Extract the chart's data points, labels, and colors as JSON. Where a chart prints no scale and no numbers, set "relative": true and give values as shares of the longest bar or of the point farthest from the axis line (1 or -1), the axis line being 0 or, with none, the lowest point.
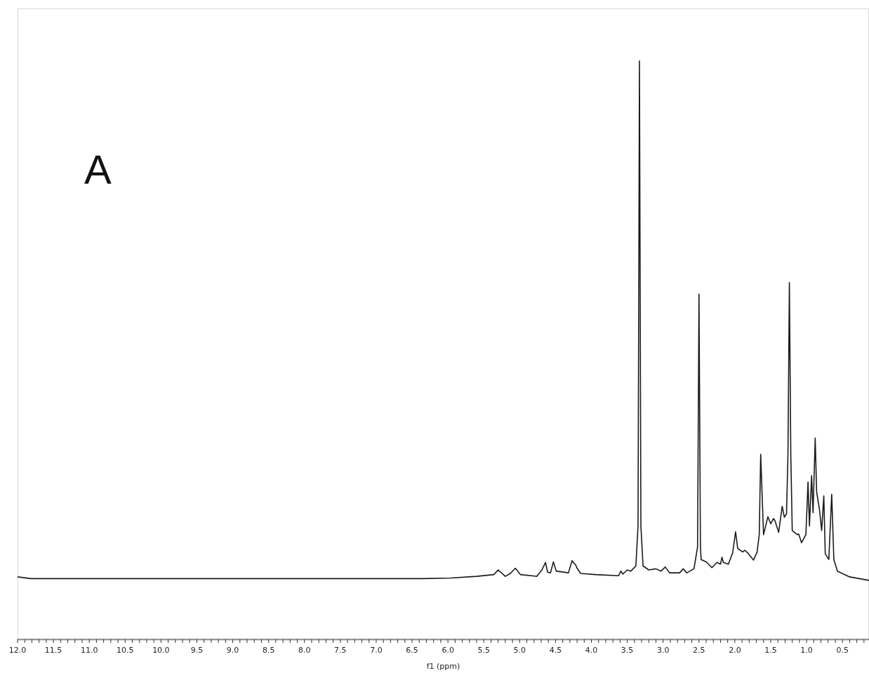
{
  "chart_data": {
    "type": "line",
    "relative": true,
    "xlabel": "f1 (ppm)",
    "annotations": [
      "A"
    ],
    "marker": "none",
    "tick_labels": "x",
    "xlim": [
      12.0,
      0.13
    ],
    "xticks": [
      {
        "value": 12,
        "label": "12.0"
      },
      {
        "value": 11.9,
        "label": null
      },
      {
        "value": 11.8,
        "label": null
      },
      {
        "value": 11.7,
        "label": null
      },
      {
        "value": 11.6,
        "label": null
      },
      {
        "value": 11.5,
        "label": "11.5"
      },
      {
        "value": 11.4,
        "label": null
      },
      {
        "value": 11.3,
        "label": null
      },
      {
        "value": 11.2,
        "label": null
      },
      {
        "value": 11.1,
        "label": null
      },
      {
        "value": 11,
        "label": "11.0"
      },
      {
        "value": 10.9,
        "label": null
      },
      {
        "value": 10.8,
        "label": null
      },
      {
        "value": 10.7,
        "label": null
      },
      {
        "value": 10.6,
        "label": null
      },
      {
        "value": 10.5,
        "label": "10.5"
      },
      {
        "value": 10.4,
        "label": null
      },
      {
        "value": 10.3,
        "label": null
      },
      {
        "value": 10.2,
        "label": null
      },
      {
        "value": 10.1,
        "label": null
      },
      {
        "value": 10,
        "label": "10.0"
      },
      {
        "value": 9.9,
        "label": null
      },
      {
        "value": 9.8,
        "label": null
      },
      {
        "value": 9.7,
        "label": null
      },
      {
        "value": 9.6,
        "label": null
      },
      {
        "value": 9.5,
        "label": "9.5"
      },
      {
        "value": 9.4,
        "label": null
      },
      {
        "value": 9.3,
        "label": null
      },
      {
        "value": 9.2,
        "label": null
      },
      {
        "value": 9.1,
        "label": null
      },
      {
        "value": 9,
        "label": "9.0"
      },
      {
        "value": 8.9,
        "label": null
      },
      {
        "value": 8.8,
        "label": null
      },
      {
        "value": 8.7,
        "label": null
      },
      {
        "value": 8.6,
        "label": null
      },
      {
        "value": 8.5,
        "label": "8.5"
      },
      {
        "value": 8.4,
        "label": null
      },
      {
        "value": 8.3,
        "label": null
      },
      {
        "value": 8.2,
        "label": null
      },
      {
        "value": 8.1,
        "label": null
      },
      {
        "value": 8,
        "label": "8.0"
      },
      {
        "value": 7.9,
        "label": null
      },
      {
        "value": 7.8,
        "label": null
      },
      {
        "value": 7.7,
        "label": null
      },
      {
        "value": 7.6,
        "label": null
      },
      {
        "value": 7.5,
        "label": "7.5"
      },
      {
        "value": 7.4,
        "label": null
      },
      {
        "value": 7.3,
        "label": null
      },
      {
        "value": 7.2,
        "label": null
      },
      {
        "value": 7.1,
        "label": null
      },
      {
        "value": 7,
        "label": "7.0"
      },
      {
        "value": 6.9,
        "label": null
      },
      {
        "value": 6.8,
        "label": null
      },
      {
        "value": 6.7,
        "label": null
      },
      {
        "value": 6.6,
        "label": null
      },
      {
        "value": 6.5,
        "label": "6.5"
      },
      {
        "value": 6.4,
        "label": null
      },
      {
        "value": 6.3,
        "label": null
      },
      {
        "value": 6.2,
        "label": null
      },
      {
        "value": 6.1,
        "label": null
      },
      {
        "value": 6,
        "label": "6.0"
      },
      {
        "value": 5.9,
        "label": null
      },
      {
        "value": 5.8,
        "label": null
      },
      {
        "value": 5.7,
        "label": null
      },
      {
        "value": 5.6,
        "label": null
      },
      {
        "value": 5.5,
        "label": "5.5"
      },
      {
        "value": 5.4,
        "label": null
      },
      {
        "value": 5.3,
        "label": null
      },
      {
        "value": 5.2,
        "label": null
      },
      {
        "value": 5.1,
        "label": null
      },
      {
        "value": 5,
        "label": "5.0"
      },
      {
        "value": 4.9,
        "label": null
      },
      {
        "value": 4.8,
        "label": null
      },
      {
        "value": 4.7,
        "label": null
      },
      {
        "value": 4.6,
        "label": null
      },
      {
        "value": 4.5,
        "label": "4.5"
      },
      {
        "value": 4.4,
        "label": null
      },
      {
        "value": 4.3,
        "label": null
      },
      {
        "value": 4.2,
        "label": null
      },
      {
        "value": 4.1,
        "label": null
      },
      {
        "value": 4,
        "label": "4.0"
      },
      {
        "value": 3.9,
        "label": null
      },
      {
        "value": 3.8,
        "label": null
      },
      {
        "value": 3.7,
        "label": null
      },
      {
        "value": 3.6,
        "label": null
      },
      {
        "value": 3.5,
        "label": "3.5"
      },
      {
        "value": 3.4,
        "label": null
      },
      {
        "value": 3.3,
        "label": null
      },
      {
        "value": 3.2,
        "label": null
      },
      {
        "value": 3.1,
        "label": null
      },
      {
        "value": 3,
        "label": "3.0"
      },
      {
        "value": 2.9,
        "label": null
      },
      {
        "value": 2.8,
        "label": null
      },
      {
        "value": 2.7,
        "label": null
      },
      {
        "value": 2.6,
        "label": null
      },
      {
        "value": 2.5,
        "label": "2.5"
      },
      {
        "value": 2.4,
        "label": null
      },
      {
        "value": 2.3,
        "label": null
      },
      {
        "value": 2.2,
        "label": null
      },
      {
        "value": 2.1,
        "label": null
      },
      {
        "value": 2,
        "label": "2.0"
      },
      {
        "value": 1.9,
        "label": null
      },
      {
        "value": 1.8,
        "label": null
      },
      {
        "value": 1.7,
        "label": null
      },
      {
        "value": 1.6,
        "label": null
      },
      {
        "value": 1.5,
        "label": "1.5"
      },
      {
        "value": 1.4,
        "label": null
      },
      {
        "value": 1.3,
        "label": null
      },
      {
        "value": 1.2,
        "label": null
      },
      {
        "value": 1.1,
        "label": null
      },
      {
        "value": 1,
        "label": "1.0"
      },
      {
        "value": 0.9,
        "label": null
      },
      {
        "value": 0.8,
        "label": null
      },
      {
        "value": 0.7,
        "label": null
      },
      {
        "value": 0.6,
        "label": null
      },
      {
        "value": 0.5,
        "label": "0.5"
      },
      {
        "value": 0.4,
        "label": null
      },
      {
        "value": 0.3,
        "label": null
      },
      {
        "value": 0.2,
        "label": null
      }
    ],
    "series": [
      {
        "color": "#1a1a1a",
        "x": [
          12.0,
          11.81,
          6.35,
          5.96,
          5.6,
          5.36,
          5.3,
          5.2,
          5.13,
          5.06,
          4.99,
          4.76,
          4.69,
          4.64,
          4.61,
          4.57,
          4.53,
          4.49,
          4.32,
          4.27,
          4.24,
          4.22,
          4.2,
          4.15,
          3.94,
          3.62,
          3.59,
          3.56,
          3.5,
          3.45,
          3.38,
          3.35,
          3.33,
          3.31,
          3.28,
          3.2,
          3.1,
          3.03,
          2.97,
          2.91,
          2.77,
          2.72,
          2.67,
          2.57,
          2.52,
          2.5,
          2.48,
          2.47,
          2.4,
          2.32,
          2.25,
          2.2,
          2.18,
          2.16,
          2.09,
          2.03,
          1.99,
          1.96,
          1.89,
          1.86,
          1.81,
          1.74,
          1.69,
          1.66,
          1.64,
          1.6,
          1.54,
          1.5,
          1.46,
          1.44,
          1.39,
          1.34,
          1.31,
          1.28,
          1.26,
          1.24,
          1.22,
          1.2,
          1.13,
          1.11,
          1.07,
          1.01,
          0.98,
          0.96,
          0.93,
          0.91,
          0.88,
          0.86,
          0.82,
          0.79,
          0.76,
          0.74,
          0.69,
          0.65,
          0.62,
          0.57,
          0.4,
          0.13
        ],
        "values": [
          0.108,
          0.105,
          0.105,
          0.106,
          0.109,
          0.112,
          0.12,
          0.109,
          0.114,
          0.123,
          0.112,
          0.109,
          0.12,
          0.133,
          0.116,
          0.115,
          0.134,
          0.118,
          0.115,
          0.136,
          0.131,
          0.129,
          0.123,
          0.114,
          0.112,
          0.11,
          0.118,
          0.113,
          0.12,
          0.118,
          0.127,
          0.196,
          1.0,
          0.196,
          0.127,
          0.12,
          0.122,
          0.118,
          0.125,
          0.115,
          0.115,
          0.122,
          0.115,
          0.122,
          0.16,
          0.597,
          0.16,
          0.138,
          0.134,
          0.124,
          0.133,
          0.13,
          0.142,
          0.133,
          0.13,
          0.15,
          0.186,
          0.157,
          0.151,
          0.154,
          0.148,
          0.137,
          0.151,
          0.181,
          0.32,
          0.181,
          0.212,
          0.2,
          0.209,
          0.205,
          0.185,
          0.23,
          0.211,
          0.217,
          0.318,
          0.617,
          0.318,
          0.188,
          0.181,
          0.182,
          0.167,
          0.181,
          0.272,
          0.196,
          0.283,
          0.219,
          0.348,
          0.255,
          0.224,
          0.188,
          0.248,
          0.148,
          0.138,
          0.251,
          0.138,
          0.118,
          0.108,
          0.102
        ]
      }
    ]
  }
}
